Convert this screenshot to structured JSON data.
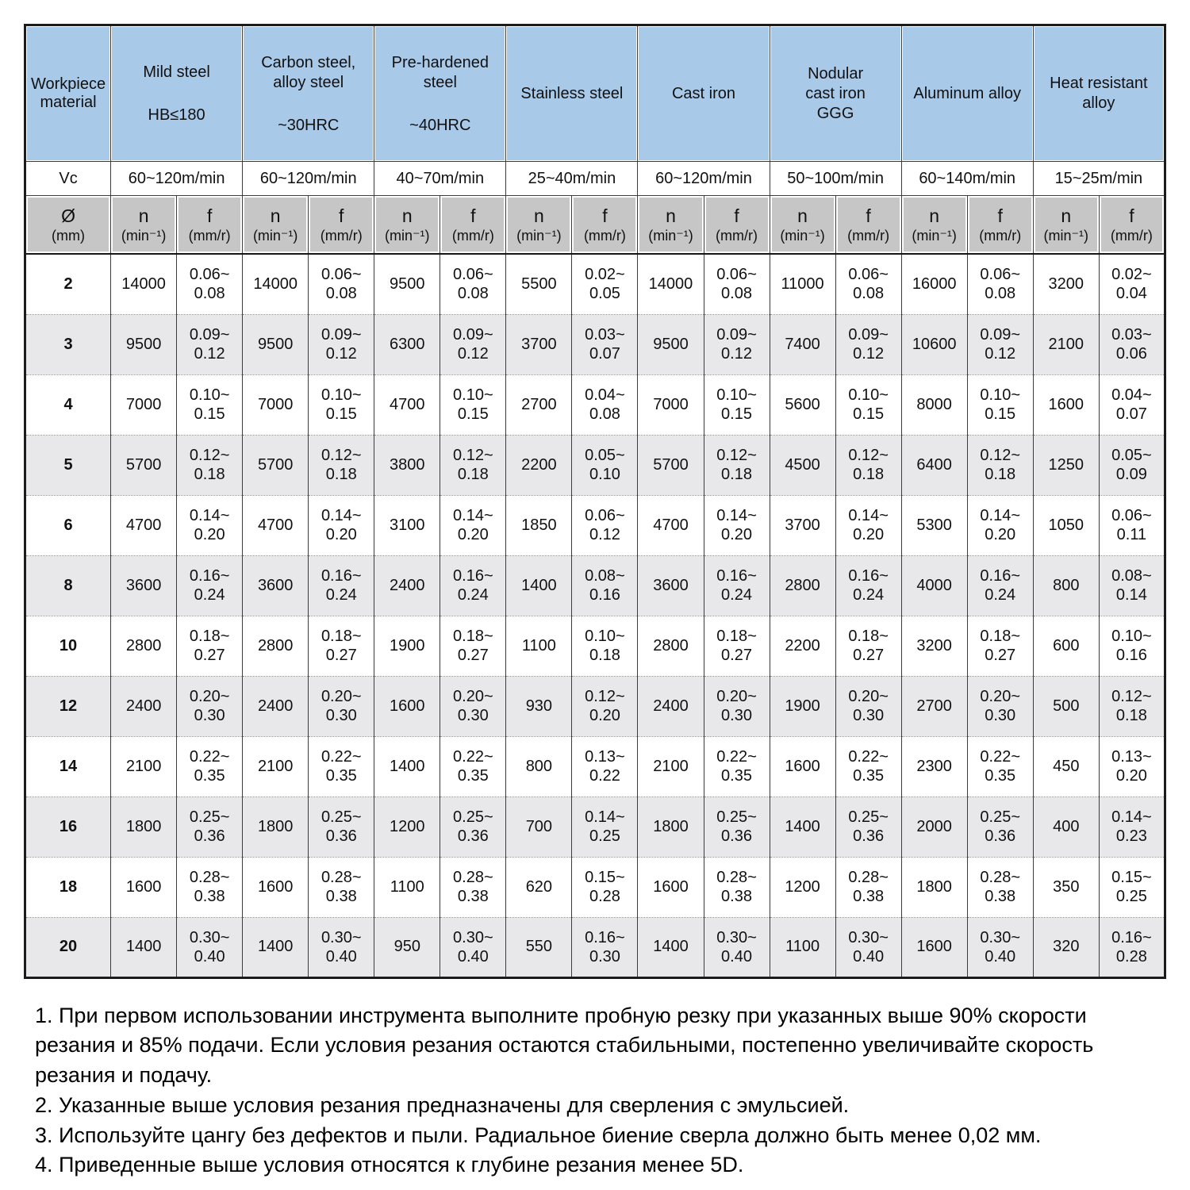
{
  "table": {
    "corner_label": "Workpiece\nmaterial",
    "vc_label": "Vc",
    "diameter_header": {
      "symbol": "Ø",
      "unit": "(mm)"
    },
    "col_n": {
      "label": "n",
      "unit": "(min⁻¹)"
    },
    "col_f": {
      "label": "f",
      "unit": "(mm/r)"
    },
    "materials": [
      {
        "name": "Mild steel",
        "spec": "HB≤180",
        "vc": "60~120m/min"
      },
      {
        "name": "Carbon steel,\nalloy steel",
        "spec": "~30HRC",
        "vc": "60~120m/min"
      },
      {
        "name": "Pre-hardened\nsteel",
        "spec": "~40HRC",
        "vc": "40~70m/min"
      },
      {
        "name": "Stainless steel",
        "spec": "",
        "vc": "25~40m/min"
      },
      {
        "name": "Cast iron",
        "spec": "",
        "vc": "60~120m/min"
      },
      {
        "name": "Nodular\ncast iron\nGGG",
        "spec": "",
        "vc": "50~100m/min"
      },
      {
        "name": "Aluminum alloy",
        "spec": "",
        "vc": "60~140m/min"
      },
      {
        "name": "Heat resistant\nalloy",
        "spec": "",
        "vc": "15~25m/min"
      }
    ],
    "rows": [
      {
        "d": "2",
        "values": [
          [
            "14000",
            "0.06~0.08"
          ],
          [
            "14000",
            "0.06~0.08"
          ],
          [
            "9500",
            "0.06~0.08"
          ],
          [
            "5500",
            "0.02~0.05"
          ],
          [
            "14000",
            "0.06~0.08"
          ],
          [
            "11000",
            "0.06~0.08"
          ],
          [
            "16000",
            "0.06~0.08"
          ],
          [
            "3200",
            "0.02~0.04"
          ]
        ]
      },
      {
        "d": "3",
        "values": [
          [
            "9500",
            "0.09~0.12"
          ],
          [
            "9500",
            "0.09~0.12"
          ],
          [
            "6300",
            "0.09~0.12"
          ],
          [
            "3700",
            "0.03~0.07"
          ],
          [
            "9500",
            "0.09~0.12"
          ],
          [
            "7400",
            "0.09~0.12"
          ],
          [
            "10600",
            "0.09~0.12"
          ],
          [
            "2100",
            "0.03~0.06"
          ]
        ]
      },
      {
        "d": "4",
        "values": [
          [
            "7000",
            "0.10~0.15"
          ],
          [
            "7000",
            "0.10~0.15"
          ],
          [
            "4700",
            "0.10~0.15"
          ],
          [
            "2700",
            "0.04~0.08"
          ],
          [
            "7000",
            "0.10~0.15"
          ],
          [
            "5600",
            "0.10~0.15"
          ],
          [
            "8000",
            "0.10~0.15"
          ],
          [
            "1600",
            "0.04~0.07"
          ]
        ]
      },
      {
        "d": "5",
        "values": [
          [
            "5700",
            "0.12~0.18"
          ],
          [
            "5700",
            "0.12~0.18"
          ],
          [
            "3800",
            "0.12~0.18"
          ],
          [
            "2200",
            "0.05~0.10"
          ],
          [
            "5700",
            "0.12~0.18"
          ],
          [
            "4500",
            "0.12~0.18"
          ],
          [
            "6400",
            "0.12~0.18"
          ],
          [
            "1250",
            "0.05~0.09"
          ]
        ]
      },
      {
        "d": "6",
        "values": [
          [
            "4700",
            "0.14~0.20"
          ],
          [
            "4700",
            "0.14~0.20"
          ],
          [
            "3100",
            "0.14~0.20"
          ],
          [
            "1850",
            "0.06~0.12"
          ],
          [
            "4700",
            "0.14~0.20"
          ],
          [
            "3700",
            "0.14~0.20"
          ],
          [
            "5300",
            "0.14~0.20"
          ],
          [
            "1050",
            "0.06~0.11"
          ]
        ]
      },
      {
        "d": "8",
        "values": [
          [
            "3600",
            "0.16~0.24"
          ],
          [
            "3600",
            "0.16~0.24"
          ],
          [
            "2400",
            "0.16~0.24"
          ],
          [
            "1400",
            "0.08~0.16"
          ],
          [
            "3600",
            "0.16~0.24"
          ],
          [
            "2800",
            "0.16~0.24"
          ],
          [
            "4000",
            "0.16~0.24"
          ],
          [
            "800",
            "0.08~0.14"
          ]
        ]
      },
      {
        "d": "10",
        "values": [
          [
            "2800",
            "0.18~0.27"
          ],
          [
            "2800",
            "0.18~0.27"
          ],
          [
            "1900",
            "0.18~0.27"
          ],
          [
            "1100",
            "0.10~0.18"
          ],
          [
            "2800",
            "0.18~0.27"
          ],
          [
            "2200",
            "0.18~0.27"
          ],
          [
            "3200",
            "0.18~0.27"
          ],
          [
            "600",
            "0.10~0.16"
          ]
        ]
      },
      {
        "d": "12",
        "values": [
          [
            "2400",
            "0.20~0.30"
          ],
          [
            "2400",
            "0.20~0.30"
          ],
          [
            "1600",
            "0.20~0.30"
          ],
          [
            "930",
            "0.12~0.20"
          ],
          [
            "2400",
            "0.20~0.30"
          ],
          [
            "1900",
            "0.20~0.30"
          ],
          [
            "2700",
            "0.20~0.30"
          ],
          [
            "500",
            "0.12~0.18"
          ]
        ]
      },
      {
        "d": "14",
        "values": [
          [
            "2100",
            "0.22~0.35"
          ],
          [
            "2100",
            "0.22~0.35"
          ],
          [
            "1400",
            "0.22~0.35"
          ],
          [
            "800",
            "0.13~0.22"
          ],
          [
            "2100",
            "0.22~0.35"
          ],
          [
            "1600",
            "0.22~0.35"
          ],
          [
            "2300",
            "0.22~0.35"
          ],
          [
            "450",
            "0.13~0.20"
          ]
        ]
      },
      {
        "d": "16",
        "values": [
          [
            "1800",
            "0.25~0.36"
          ],
          [
            "1800",
            "0.25~0.36"
          ],
          [
            "1200",
            "0.25~0.36"
          ],
          [
            "700",
            "0.14~0.25"
          ],
          [
            "1800",
            "0.25~0.36"
          ],
          [
            "1400",
            "0.25~0.36"
          ],
          [
            "2000",
            "0.25~0.36"
          ],
          [
            "400",
            "0.14~0.23"
          ]
        ]
      },
      {
        "d": "18",
        "values": [
          [
            "1600",
            "0.28~0.38"
          ],
          [
            "1600",
            "0.28~0.38"
          ],
          [
            "1100",
            "0.28~0.38"
          ],
          [
            "620",
            "0.15~0.28"
          ],
          [
            "1600",
            "0.28~0.38"
          ],
          [
            "1200",
            "0.28~0.38"
          ],
          [
            "1800",
            "0.28~0.38"
          ],
          [
            "350",
            "0.15~0.25"
          ]
        ]
      },
      {
        "d": "20",
        "values": [
          [
            "1400",
            "0.30~0.40"
          ],
          [
            "1400",
            "0.30~0.40"
          ],
          [
            "950",
            "0.30~0.40"
          ],
          [
            "550",
            "0.16~0.30"
          ],
          [
            "1400",
            "0.30~0.40"
          ],
          [
            "1100",
            "0.30~0.40"
          ],
          [
            "1600",
            "0.30~0.40"
          ],
          [
            "320",
            "0.16~0.28"
          ]
        ]
      }
    ]
  },
  "colors": {
    "header_blue": "#a9c9e9",
    "subheader_gray": "#c6c6c6",
    "row_alt_gray": "#e8e8ea"
  },
  "notes": [
    "1. При первом использовании инструмента выполните пробную резку при указанных выше 90% скорости резания и 85% подачи. Если условия резания остаются стабильными, постепенно увеличивайте скорость резания и подачу.",
    "2. Указанные выше условия резания предназначены для сверления с эмульсией.",
    "3. Используйте цангу без дефектов и пыли. Радиальное биение сверла должно быть менее 0,02 мм.",
    "4. Приведенные выше условия относятся к глубине резания менее 5D."
  ]
}
